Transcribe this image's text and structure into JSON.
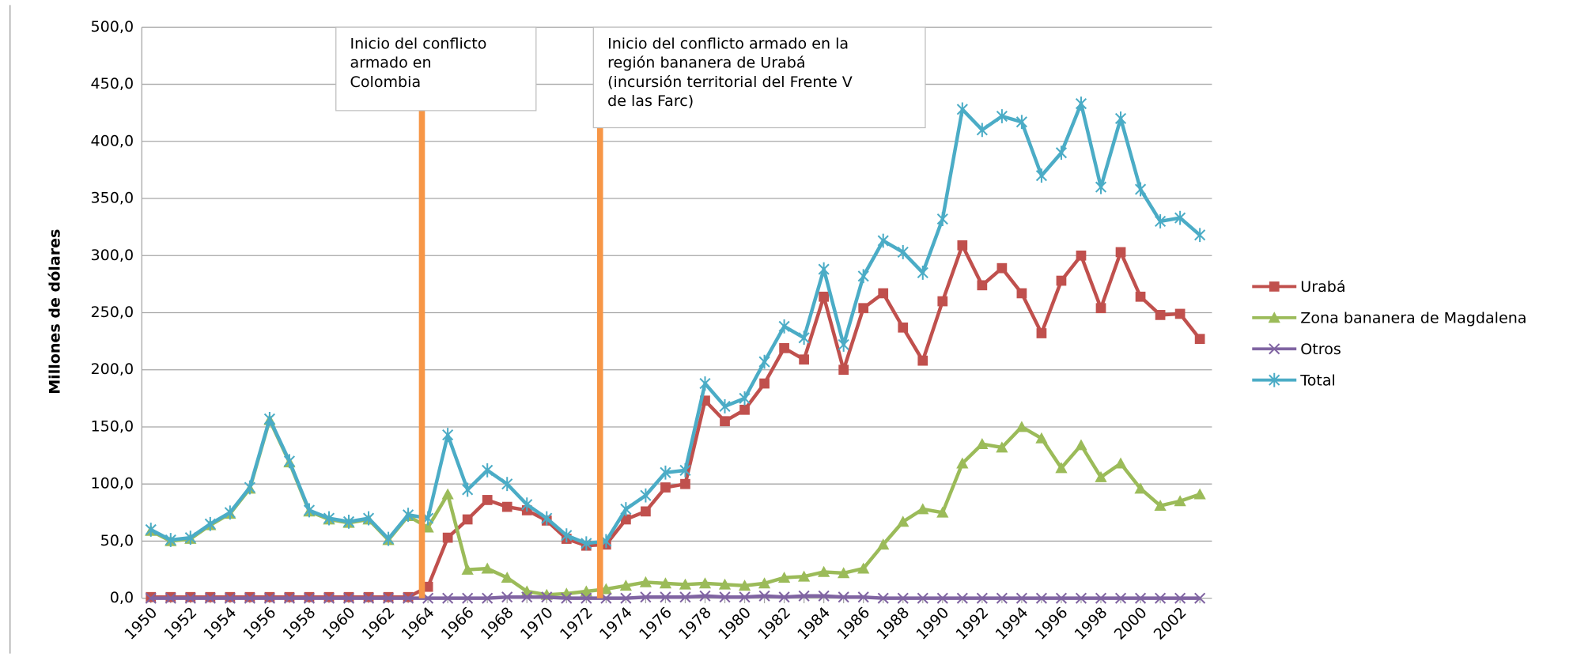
{
  "chart_data": {
    "type": "line",
    "y_label": "Millones de dólares",
    "categories": [
      "1950",
      null,
      "1952",
      null,
      "1954",
      null,
      "1956",
      null,
      "1958",
      null,
      "1960",
      null,
      "1962",
      null,
      "1964",
      null,
      "1966",
      null,
      "1968",
      null,
      "1970",
      null,
      "1972",
      null,
      "1974",
      null,
      "1976",
      null,
      "1978",
      null,
      "1980",
      null,
      "1982",
      null,
      "1984",
      null,
      "1986",
      null,
      "1988",
      null,
      "1990",
      null,
      "1992",
      null,
      "1994",
      null,
      "1996",
      null,
      "1998",
      null,
      "2000",
      null,
      "2002",
      null
    ],
    "series": [
      {
        "name": "Urabá",
        "color": "#c0504d",
        "marker": "square",
        "values": [
          1,
          1,
          1,
          1,
          1,
          1,
          1,
          1,
          1,
          1,
          1,
          1,
          1,
          1,
          10,
          53,
          69,
          86,
          80,
          77,
          68,
          52,
          46,
          47,
          69,
          76,
          97,
          100,
          173,
          155,
          165,
          188,
          219,
          209,
          264,
          200,
          254,
          267,
          237,
          208,
          260,
          309,
          274,
          289,
          267,
          232,
          278,
          300,
          254,
          303,
          264,
          248,
          249,
          227
        ]
      },
      {
        "name": "Zona bananera de Magdalena",
        "color": "#9bbb59",
        "marker": "triangle",
        "values": [
          59,
          50,
          52,
          64,
          74,
          96,
          156,
          119,
          76,
          69,
          66,
          69,
          51,
          72,
          62,
          91,
          25,
          26,
          18,
          6,
          3,
          4,
          6,
          8,
          11,
          14,
          13,
          12,
          13,
          12,
          11,
          13,
          18,
          19,
          23,
          22,
          26,
          47,
          67,
          78,
          75,
          118,
          135,
          132,
          150,
          140,
          114,
          134,
          106,
          118,
          96,
          81,
          85,
          91
        ]
      },
      {
        "name": "Otros",
        "color": "#8064a2",
        "marker": "x",
        "values": [
          0,
          0,
          0,
          0,
          0,
          0,
          0,
          0,
          0,
          0,
          0,
          0,
          0,
          0,
          0,
          0,
          0,
          0,
          1,
          1,
          1,
          0,
          0,
          0,
          0,
          1,
          1,
          1,
          2,
          1,
          1,
          2,
          1,
          2,
          2,
          1,
          1,
          0,
          0,
          0,
          0,
          0,
          0,
          0,
          0,
          0,
          0,
          0,
          0,
          0,
          0,
          0,
          0,
          0
        ]
      },
      {
        "name": "Total",
        "color": "#4bacc6",
        "marker": "star",
        "values": [
          60,
          51,
          53,
          65,
          75,
          97,
          157,
          120,
          77,
          70,
          67,
          70,
          52,
          73,
          70,
          143,
          95,
          112,
          100,
          82,
          70,
          55,
          48,
          50,
          78,
          90,
          110,
          112,
          188,
          168,
          175,
          207,
          238,
          228,
          288,
          222,
          282,
          313,
          303,
          285,
          332,
          428,
          410,
          422,
          417,
          370,
          390,
          433,
          360,
          420,
          358,
          330,
          333,
          318
        ]
      }
    ],
    "ylim": [
      0,
      500
    ],
    "yticks": [
      {
        "value": 0,
        "label": "0,0"
      },
      {
        "value": 50,
        "label": "50,0"
      },
      {
        "value": 100,
        "label": "100,0"
      },
      {
        "value": 150,
        "label": "150,0"
      },
      {
        "value": 200,
        "label": "200,0"
      },
      {
        "value": 250,
        "label": "250,0"
      },
      {
        "value": 300,
        "label": "300,0"
      },
      {
        "value": 350,
        "label": "350,0"
      },
      {
        "value": 400,
        "label": "400,0"
      },
      {
        "value": 450,
        "label": "450,0"
      },
      {
        "value": 500,
        "label": "500,0"
      }
    ],
    "grid": true,
    "legend": "right",
    "annotations": [
      {
        "x": 1964,
        "color": "#f79646",
        "lines": [
          "Inicio del conflicto",
          "armado en",
          "Colombia"
        ]
      },
      {
        "x": 1973,
        "color": "#f79646",
        "lines": [
          "Inicio del conflicto armado en la",
          "región bananera de Urabá",
          "(incursión territorial del Frente V",
          "de las Farc)"
        ]
      }
    ]
  }
}
